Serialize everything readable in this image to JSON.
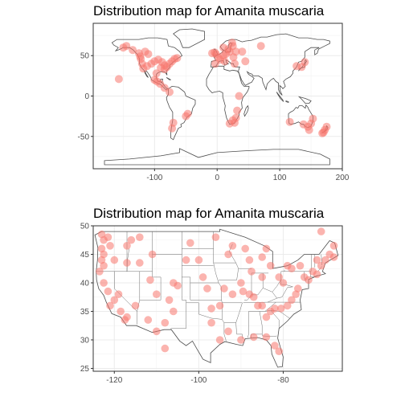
{
  "chart_data": [
    {
      "type": "scatter",
      "title": "Distribution map for Amanita muscaria",
      "xlabel": "",
      "ylabel": "",
      "xlim": [
        -198,
        200
      ],
      "ylim": [
        -90,
        90
      ],
      "x_ticks": [
        -100,
        0,
        100,
        200
      ],
      "y_ticks": [
        -50,
        0,
        50
      ],
      "x_tick_labels": [
        "-100",
        "0",
        "100",
        "200"
      ],
      "y_tick_labels": [
        "-50",
        "0",
        "50"
      ],
      "grid": true,
      "legend": "none",
      "point_color": "#F8766D",
      "outline_color": "#4d4d4d",
      "points": [
        {
          "x": -123,
          "y": 49
        },
        {
          "x": -122,
          "y": 46
        },
        {
          "x": -120,
          "y": 40
        },
        {
          "x": -118,
          "y": 34
        },
        {
          "x": -112,
          "y": 37
        },
        {
          "x": -105,
          "y": 40
        },
        {
          "x": -100,
          "y": 43
        },
        {
          "x": -94,
          "y": 45
        },
        {
          "x": -88,
          "y": 42
        },
        {
          "x": -84,
          "y": 38
        },
        {
          "x": -80,
          "y": 36
        },
        {
          "x": -76,
          "y": 40
        },
        {
          "x": -72,
          "y": 43
        },
        {
          "x": -68,
          "y": 46
        },
        {
          "x": -64,
          "y": 47
        },
        {
          "x": -90,
          "y": 35
        },
        {
          "x": -84,
          "y": 33
        },
        {
          "x": -97,
          "y": 28
        },
        {
          "x": -100,
          "y": 20
        },
        {
          "x": -96,
          "y": 18
        },
        {
          "x": -91,
          "y": 15
        },
        {
          "x": -84,
          "y": 10
        },
        {
          "x": -76,
          "y": 5
        },
        {
          "x": -70,
          "y": -33
        },
        {
          "x": -72,
          "y": -40
        },
        {
          "x": -150,
          "y": 60
        },
        {
          "x": -135,
          "y": 57
        },
        {
          "x": -145,
          "y": 62
        },
        {
          "x": -157,
          "y": 21
        },
        {
          "x": -110,
          "y": 52
        },
        {
          "x": -115,
          "y": 55
        },
        {
          "x": -125,
          "y": 53
        },
        {
          "x": -4,
          "y": 54
        },
        {
          "x": -2,
          "y": 52
        },
        {
          "x": -8,
          "y": 53
        },
        {
          "x": 2,
          "y": 48
        },
        {
          "x": 5,
          "y": 45
        },
        {
          "x": 10,
          "y": 50
        },
        {
          "x": 14,
          "y": 52
        },
        {
          "x": 18,
          "y": 58
        },
        {
          "x": 10,
          "y": 60
        },
        {
          "x": 25,
          "y": 62
        },
        {
          "x": 20,
          "y": 55
        },
        {
          "x": 26,
          "y": 48
        },
        {
          "x": 30,
          "y": 55
        },
        {
          "x": 24,
          "y": 66
        },
        {
          "x": 40,
          "y": 55
        },
        {
          "x": -3,
          "y": 40
        },
        {
          "x": 12,
          "y": 43
        },
        {
          "x": 28,
          "y": 40
        },
        {
          "x": 70,
          "y": 62
        },
        {
          "x": 140,
          "y": 42
        },
        {
          "x": 135,
          "y": 36
        },
        {
          "x": 127,
          "y": 37
        },
        {
          "x": 45,
          "y": 43
        },
        {
          "x": 35,
          "y": 0
        },
        {
          "x": 32,
          "y": -18
        },
        {
          "x": 30,
          "y": -27
        },
        {
          "x": 25,
          "y": -30
        },
        {
          "x": 20,
          "y": -34
        },
        {
          "x": 28,
          "y": -33
        },
        {
          "x": -50,
          "y": -25
        },
        {
          "x": -47,
          "y": -22
        },
        {
          "x": 116,
          "y": -32
        },
        {
          "x": 145,
          "y": -38
        },
        {
          "x": 150,
          "y": -34
        },
        {
          "x": 153,
          "y": -28
        },
        {
          "x": 147,
          "y": -42
        },
        {
          "x": 138,
          "y": -35
        },
        {
          "x": 175,
          "y": -38
        },
        {
          "x": 172,
          "y": -42
        },
        {
          "x": 170,
          "y": -45
        },
        {
          "x": 168,
          "y": -46
        }
      ]
    },
    {
      "type": "scatter",
      "title": "Distribution map for Amanita muscaria",
      "xlabel": "",
      "ylabel": "",
      "xlim": [
        -125,
        -66
      ],
      "ylim": [
        24.5,
        50
      ],
      "x_ticks": [
        -120,
        -100,
        -80
      ],
      "y_ticks": [
        25,
        30,
        35,
        40,
        45,
        50
      ],
      "x_tick_labels": [
        "-120",
        "-100",
        "-80"
      ],
      "y_tick_labels": [
        "25",
        "30",
        "35",
        "40",
        "45",
        "50"
      ],
      "grid": true,
      "legend": "none",
      "point_color": "#F8766D",
      "outline_color": "#4d4d4d",
      "points": [
        {
          "x": -123,
          "y": 48.5
        },
        {
          "x": -122.5,
          "y": 47.5
        },
        {
          "x": -123,
          "y": 46
        },
        {
          "x": -122.5,
          "y": 45
        },
        {
          "x": -123,
          "y": 44
        },
        {
          "x": -123.5,
          "y": 42
        },
        {
          "x": -122.5,
          "y": 43
        },
        {
          "x": -121.5,
          "y": 48
        },
        {
          "x": -122.5,
          "y": 40
        },
        {
          "x": -121.5,
          "y": 38.5
        },
        {
          "x": -120,
          "y": 37
        },
        {
          "x": -118.5,
          "y": 35
        },
        {
          "x": -117,
          "y": 34
        },
        {
          "x": -121,
          "y": 36
        },
        {
          "x": -116,
          "y": 47.5
        },
        {
          "x": -117,
          "y": 46.5
        },
        {
          "x": -114,
          "y": 48
        },
        {
          "x": -111,
          "y": 45
        },
        {
          "x": -114,
          "y": 43.5
        },
        {
          "x": -111.5,
          "y": 40.5
        },
        {
          "x": -110,
          "y": 38
        },
        {
          "x": -106,
          "y": 40
        },
        {
          "x": -105,
          "y": 39.5
        },
        {
          "x": -107,
          "y": 37
        },
        {
          "x": -106,
          "y": 35
        },
        {
          "x": -108,
          "y": 33
        },
        {
          "x": -110,
          "y": 31.5
        },
        {
          "x": -108,
          "y": 28.5
        },
        {
          "x": -96,
          "y": 48
        },
        {
          "x": -93,
          "y": 45
        },
        {
          "x": -92,
          "y": 46.5
        },
        {
          "x": -89,
          "y": 46
        },
        {
          "x": -88,
          "y": 44
        },
        {
          "x": -87.5,
          "y": 42
        },
        {
          "x": -85,
          "y": 44.5
        },
        {
          "x": -84,
          "y": 46
        },
        {
          "x": -83,
          "y": 43
        },
        {
          "x": -81,
          "y": 41
        },
        {
          "x": -80,
          "y": 40
        },
        {
          "x": -78,
          "y": 42.5
        },
        {
          "x": -76,
          "y": 43
        },
        {
          "x": -75,
          "y": 41
        },
        {
          "x": -74,
          "y": 40.5
        },
        {
          "x": -73,
          "y": 42
        },
        {
          "x": -72,
          "y": 44
        },
        {
          "x": -71,
          "y": 43
        },
        {
          "x": -70,
          "y": 44
        },
        {
          "x": -69,
          "y": 45
        },
        {
          "x": -68,
          "y": 46.5
        },
        {
          "x": -72,
          "y": 41.5
        },
        {
          "x": -76.5,
          "y": 39
        },
        {
          "x": -77,
          "y": 38
        },
        {
          "x": -78,
          "y": 37
        },
        {
          "x": -79,
          "y": 36
        },
        {
          "x": -80.5,
          "y": 35.5
        },
        {
          "x": -82,
          "y": 35.5
        },
        {
          "x": -83,
          "y": 35
        },
        {
          "x": -84,
          "y": 34
        },
        {
          "x": -85,
          "y": 36
        },
        {
          "x": -86,
          "y": 36
        },
        {
          "x": -87,
          "y": 37.5
        },
        {
          "x": -88,
          "y": 38
        },
        {
          "x": -89.5,
          "y": 38.5
        },
        {
          "x": -90,
          "y": 40
        },
        {
          "x": -92,
          "y": 38
        },
        {
          "x": -94,
          "y": 39
        },
        {
          "x": -95,
          "y": 36
        },
        {
          "x": -97,
          "y": 35.5
        },
        {
          "x": -97,
          "y": 33
        },
        {
          "x": -95,
          "y": 30
        },
        {
          "x": -90,
          "y": 30
        },
        {
          "x": -87,
          "y": 30.5
        },
        {
          "x": -84,
          "y": 30.5
        },
        {
          "x": -82,
          "y": 29
        },
        {
          "x": -81,
          "y": 28
        },
        {
          "x": -93,
          "y": 31.5
        },
        {
          "x": -100,
          "y": 44
        },
        {
          "x": -103,
          "y": 44
        },
        {
          "x": -99,
          "y": 41
        },
        {
          "x": -98,
          "y": 39
        },
        {
          "x": -102,
          "y": 47
        },
        {
          "x": -85,
          "y": 41
        },
        {
          "x": -79,
          "y": 43
        },
        {
          "x": -68,
          "y": 44.5
        },
        {
          "x": -71,
          "y": 49
        },
        {
          "x": -117.5,
          "y": 33.5
        },
        {
          "x": -115,
          "y": 36
        },
        {
          "x": -112,
          "y": 33.5
        },
        {
          "x": -119,
          "y": 38
        },
        {
          "x": -121,
          "y": 46.5
        },
        {
          "x": -120,
          "y": 44
        },
        {
          "x": -117,
          "y": 43.5
        }
      ]
    }
  ]
}
